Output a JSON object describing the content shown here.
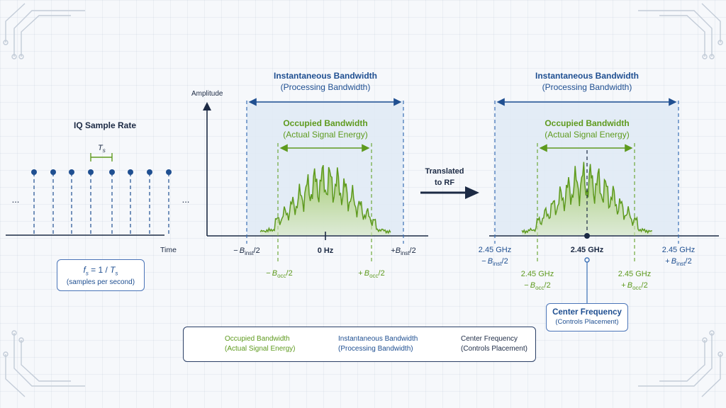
{
  "sample_rate": {
    "title": "IQ Sample Rate",
    "period_label": "T",
    "period_sub": "s",
    "time_label": "Time",
    "ellipsis_left": "...",
    "ellipsis_right": "...",
    "formula_f": "f",
    "formula_f_sub": "s",
    "formula_eq": " = 1 / ",
    "formula_T": "T",
    "formula_T_sub": "s",
    "formula_caption": "(samples per second)"
  },
  "baseband": {
    "axis_label": "Amplitude",
    "inst_title": "Instantaneous Bandwidth",
    "inst_subtitle": "(Processing Bandwidth)",
    "occ_title": "Occupied Bandwidth",
    "occ_subtitle": "(Actual Signal Energy)",
    "minus_binst": "−",
    "b_label": "B",
    "inst_sub": "inst",
    "occ_sub": "occ",
    "half": "/2",
    "plus": "+",
    "center": "0 Hz"
  },
  "translate": {
    "line1": "Translated",
    "line2": "to RF"
  },
  "rf": {
    "inst_title": "Instantaneous Bandwidth",
    "inst_subtitle": "(Processing Bandwidth)",
    "occ_title": "Occupied Bandwidth",
    "occ_subtitle": "(Actual Signal Energy)",
    "freq": "2.45 GHz",
    "center": "2.45 GHz",
    "cf_title": "Center Frequency",
    "cf_subtitle": "(Controls Placement)"
  },
  "legend": {
    "items": [
      {
        "line1": "Occupied Bandwidth",
        "line2": "(Actual Signal Energy)"
      },
      {
        "line1": "Instantaneous Bandwidth",
        "line2": "(Processing Bandwidth)"
      },
      {
        "line1": "Center Frequency",
        "line2": "(Controls Placement)"
      }
    ]
  },
  "colors": {
    "navy": "#1c2a44",
    "blue": "#1f4f91",
    "green": "#5e9a1e",
    "shade": "#dfeaf5"
  }
}
